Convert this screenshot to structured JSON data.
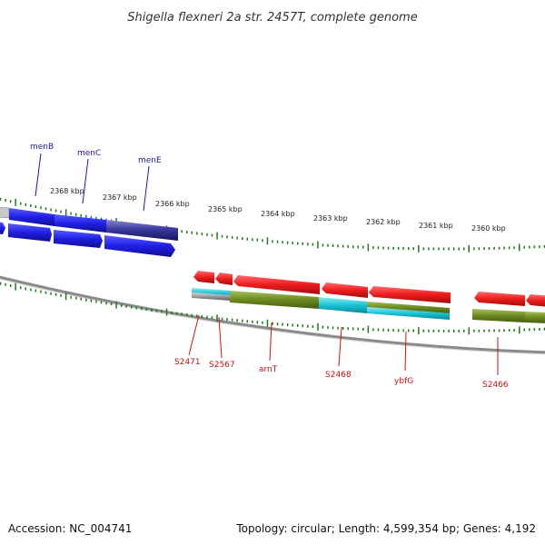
{
  "title": "Shigella flexneri 2a str. 2457T, complete genome",
  "footer": {
    "accession": "Accession: NC_004741",
    "summary": "Topology: circular; Length: 4,599,354 bp; Genes: 4,192"
  },
  "colors": {
    "forward": "#1f1fe6",
    "forward_dark": "#1a1a80",
    "reverse": "#e61a1a",
    "olive": "#6b8a1e",
    "cyan": "#19c3d6",
    "tick": "#1f7a1f",
    "backbone": "#8a8a8a"
  },
  "scale": {
    "labels": [
      "2368 kbp",
      "2367 kbp",
      "2366 kbp",
      "2365 kbp",
      "2364 kbp",
      "2363 kbp",
      "2362 kbp",
      "2361 kbp",
      "2360 kbp"
    ]
  },
  "genes_forward": [
    {
      "label": "menB"
    },
    {
      "label": "menC"
    },
    {
      "label": "menE"
    }
  ],
  "genes_reverse": [
    {
      "label": "S2471"
    },
    {
      "label": "S2567"
    },
    {
      "label": "arnT"
    },
    {
      "label": "S2468"
    },
    {
      "label": "ybfG"
    },
    {
      "label": "S2466"
    }
  ]
}
